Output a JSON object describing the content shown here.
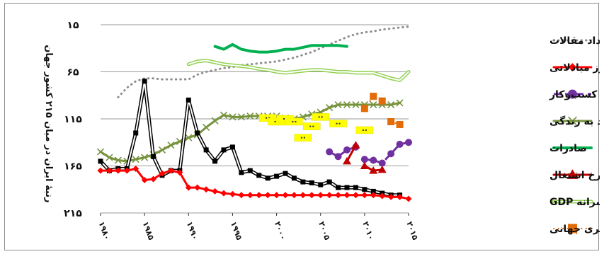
{
  "chart_data": {
    "type": "line",
    "ylabel": "رتبهٔ ایران در میان ۲۱۵ کشور جهان",
    "yticks": [
      {
        "value": 15,
        "label": "۱۵"
      },
      {
        "value": 65,
        "label": "۶۵"
      },
      {
        "value": 115,
        "label": "۱۱۵"
      },
      {
        "value": 165,
        "label": "۱۶۵"
      },
      {
        "value": 215,
        "label": "۲۱۵"
      }
    ],
    "ylim": [
      15,
      215
    ],
    "y_reversed": true,
    "xticks": [
      {
        "value": 1980,
        "label": "۱۹۸۰"
      },
      {
        "value": 1985,
        "label": "۱۹۸۵"
      },
      {
        "value": 1990,
        "label": "۱۹۹۰"
      },
      {
        "value": 1995,
        "label": "۱۹۹۵"
      },
      {
        "value": 2000,
        "label": "۲۰۰۰"
      },
      {
        "value": 2005,
        "label": "۲۰۰۵"
      },
      {
        "value": 2010,
        "label": "۲۰۱۰"
      },
      {
        "value": 2015,
        "label": "۲۰۱۵"
      }
    ],
    "xlim": [
      1980,
      2015
    ],
    "grid": true,
    "legend_position": "right",
    "series": [
      {
        "name": "تعداد مقالات",
        "color": "#8c8c8c",
        "style": "dotted",
        "marker": "none",
        "x": [
          1982,
          1983,
          1984,
          1985,
          1986,
          1987,
          1988,
          1989,
          1990,
          1991,
          1992,
          1993,
          1994,
          1995,
          1996,
          1997,
          1998,
          1999,
          2000,
          2001,
          2002,
          2003,
          2004,
          2005,
          2006,
          2007,
          2008,
          2009,
          2010,
          2011,
          2012,
          2013,
          2014,
          2015
        ],
        "y": [
          92,
          82,
          75,
          72,
          72,
          73,
          73,
          73,
          73,
          68,
          65,
          63,
          61,
          60,
          58,
          57,
          56,
          55,
          54,
          52,
          50,
          47,
          44,
          40,
          36,
          32,
          28,
          25,
          23,
          22,
          20,
          19,
          18,
          17
        ]
      },
      {
        "name": "ارز مبادلاتی",
        "color": "#ff0000",
        "style": "solid",
        "marker": "diamond",
        "x": [
          1980,
          1981,
          1982,
          1983,
          1984,
          1985,
          1986,
          1987,
          1988,
          1989,
          1990,
          1991,
          1992,
          1993,
          1994,
          1995,
          1996,
          1997,
          1998,
          1999,
          2000,
          2001,
          2002,
          2003,
          2004,
          2005,
          2006,
          2007,
          2008,
          2009,
          2010,
          2011,
          2012,
          2013,
          2014,
          2015
        ],
        "y": [
          170,
          170,
          170,
          170,
          168,
          180,
          179,
          173,
          170,
          172,
          188,
          188,
          190,
          192,
          194,
          195,
          196,
          196,
          196,
          196,
          196,
          196,
          196,
          196,
          196,
          196,
          196,
          196,
          196,
          196,
          196,
          196,
          197,
          198,
          198,
          200
        ]
      },
      {
        "name": "آسانی کسب‌وکار",
        "color": "#7030a0",
        "style": "dashed",
        "marker": "circle",
        "x": [
          2006,
          2007,
          2008,
          2009
        ],
        "y": [
          150,
          155,
          148,
          145
        ]
      },
      {
        "name": "آسانی کسب‌وکار",
        "color": "#7030a0",
        "style": "dashed",
        "marker": "circle",
        "x": [
          2010,
          2011,
          2012,
          2013,
          2014,
          2015
        ],
        "y": [
          158,
          159,
          162,
          152,
          142,
          140
        ]
      },
      {
        "name": "امید به زندگی",
        "color": "#76923c",
        "style": "solid",
        "marker": "x",
        "x": [
          1980,
          1981,
          1982,
          1983,
          1984,
          1985,
          1986,
          1987,
          1988,
          1989,
          1990,
          1991,
          1992,
          1993,
          1994,
          1995,
          1996,
          1997,
          1998,
          1999,
          2000,
          2001,
          2002,
          2003,
          2004,
          2005,
          2006,
          2007,
          2008,
          2009,
          2010,
          2011,
          2012,
          2013,
          2014
        ],
        "y": [
          150,
          156,
          159,
          160,
          158,
          156,
          153,
          148,
          143,
          139,
          135,
          132,
          124,
          117,
          111,
          113,
          113,
          112,
          112,
          112,
          112,
          114,
          115,
          113,
          110,
          108,
          103,
          100,
          100,
          100,
          100,
          100,
          100,
          100,
          98
        ]
      },
      {
        "name": "صادرات",
        "color": "#00b050",
        "style": "solid",
        "marker": "none",
        "x": [
          1993,
          1994,
          1995,
          1996,
          1997,
          1998,
          1999,
          2000,
          2001,
          2002,
          2003,
          2004,
          2005,
          2006,
          2007,
          2008
        ],
        "y": [
          38,
          41,
          36,
          41,
          43,
          44,
          44,
          43,
          41,
          41,
          39,
          37,
          37,
          37,
          37,
          38
        ]
      },
      {
        "name": "نرخ اشتغال",
        "color": "#c00000",
        "style": "solid",
        "marker": "triangle",
        "x": [
          2008,
          2009
        ],
        "y": [
          160,
          143
        ]
      },
      {
        "name": "نرخ اشتغال",
        "color": "#c00000",
        "style": "solid",
        "marker": "triangle",
        "x": [
          2010,
          2011,
          2012
        ],
        "y": [
          165,
          170,
          169
        ]
      },
      {
        "name": "سرانه GDP",
        "color": "#92d050",
        "style": "double",
        "marker": "none",
        "x": [
          1990,
          1991,
          1992,
          1993,
          1994,
          1995,
          1996,
          1997,
          1998,
          1999,
          2000,
          2001,
          2002,
          2003,
          2004,
          2005,
          2006,
          2007,
          2008,
          2009,
          2010,
          2011,
          2012,
          2013,
          2014,
          2015
        ],
        "y": [
          57,
          54,
          53,
          55,
          57,
          58,
          59,
          60,
          62,
          63,
          65,
          66,
          65,
          64,
          63,
          63,
          64,
          65,
          65,
          66,
          66,
          66,
          69,
          72,
          74,
          65
        ]
      },
      {
        "name": "رقابت‌پذیری جهانی",
        "color": "#e36c09",
        "style": "dotted",
        "marker": "square",
        "x": [
          2010,
          2011,
          2012
        ],
        "y": [
          104,
          91,
          96
        ]
      },
      {
        "name": "رقابت‌پذیری جهانی",
        "color": "#e36c09",
        "style": "dotted",
        "marker": "square",
        "x": [
          2013,
          2014
        ],
        "y": [
          118,
          121
        ]
      },
      {
        "name": "",
        "color": "#000000",
        "style": "double",
        "marker": "square",
        "x": [
          1980,
          1981,
          1982,
          1983,
          1984,
          1985,
          1986,
          1987,
          1988,
          1989,
          1990,
          1991,
          1992,
          1993,
          1994,
          1995,
          1996,
          1997,
          1998,
          1999,
          2000,
          2001,
          2002,
          2003,
          2004,
          2005,
          2006,
          2007,
          2008,
          2009,
          2010,
          2011,
          2012,
          2013,
          2014
        ],
        "y": [
          160,
          170,
          168,
          168,
          130,
          75,
          155,
          175,
          170,
          170,
          95,
          130,
          148,
          160,
          148,
          145,
          172,
          170,
          175,
          178,
          176,
          173,
          178,
          182,
          183,
          185,
          182,
          188,
          188,
          188,
          190,
          192,
          194,
          196,
          196
        ]
      }
    ],
    "markers": {
      "name": "",
      "color": "#ffff00",
      "x": [
        1999,
        2000,
        2001,
        2002,
        2003,
        2004,
        2005,
        2007,
        2010
      ],
      "y": [
        114,
        118,
        115,
        118,
        135,
        123,
        113,
        120,
        127
      ]
    }
  }
}
